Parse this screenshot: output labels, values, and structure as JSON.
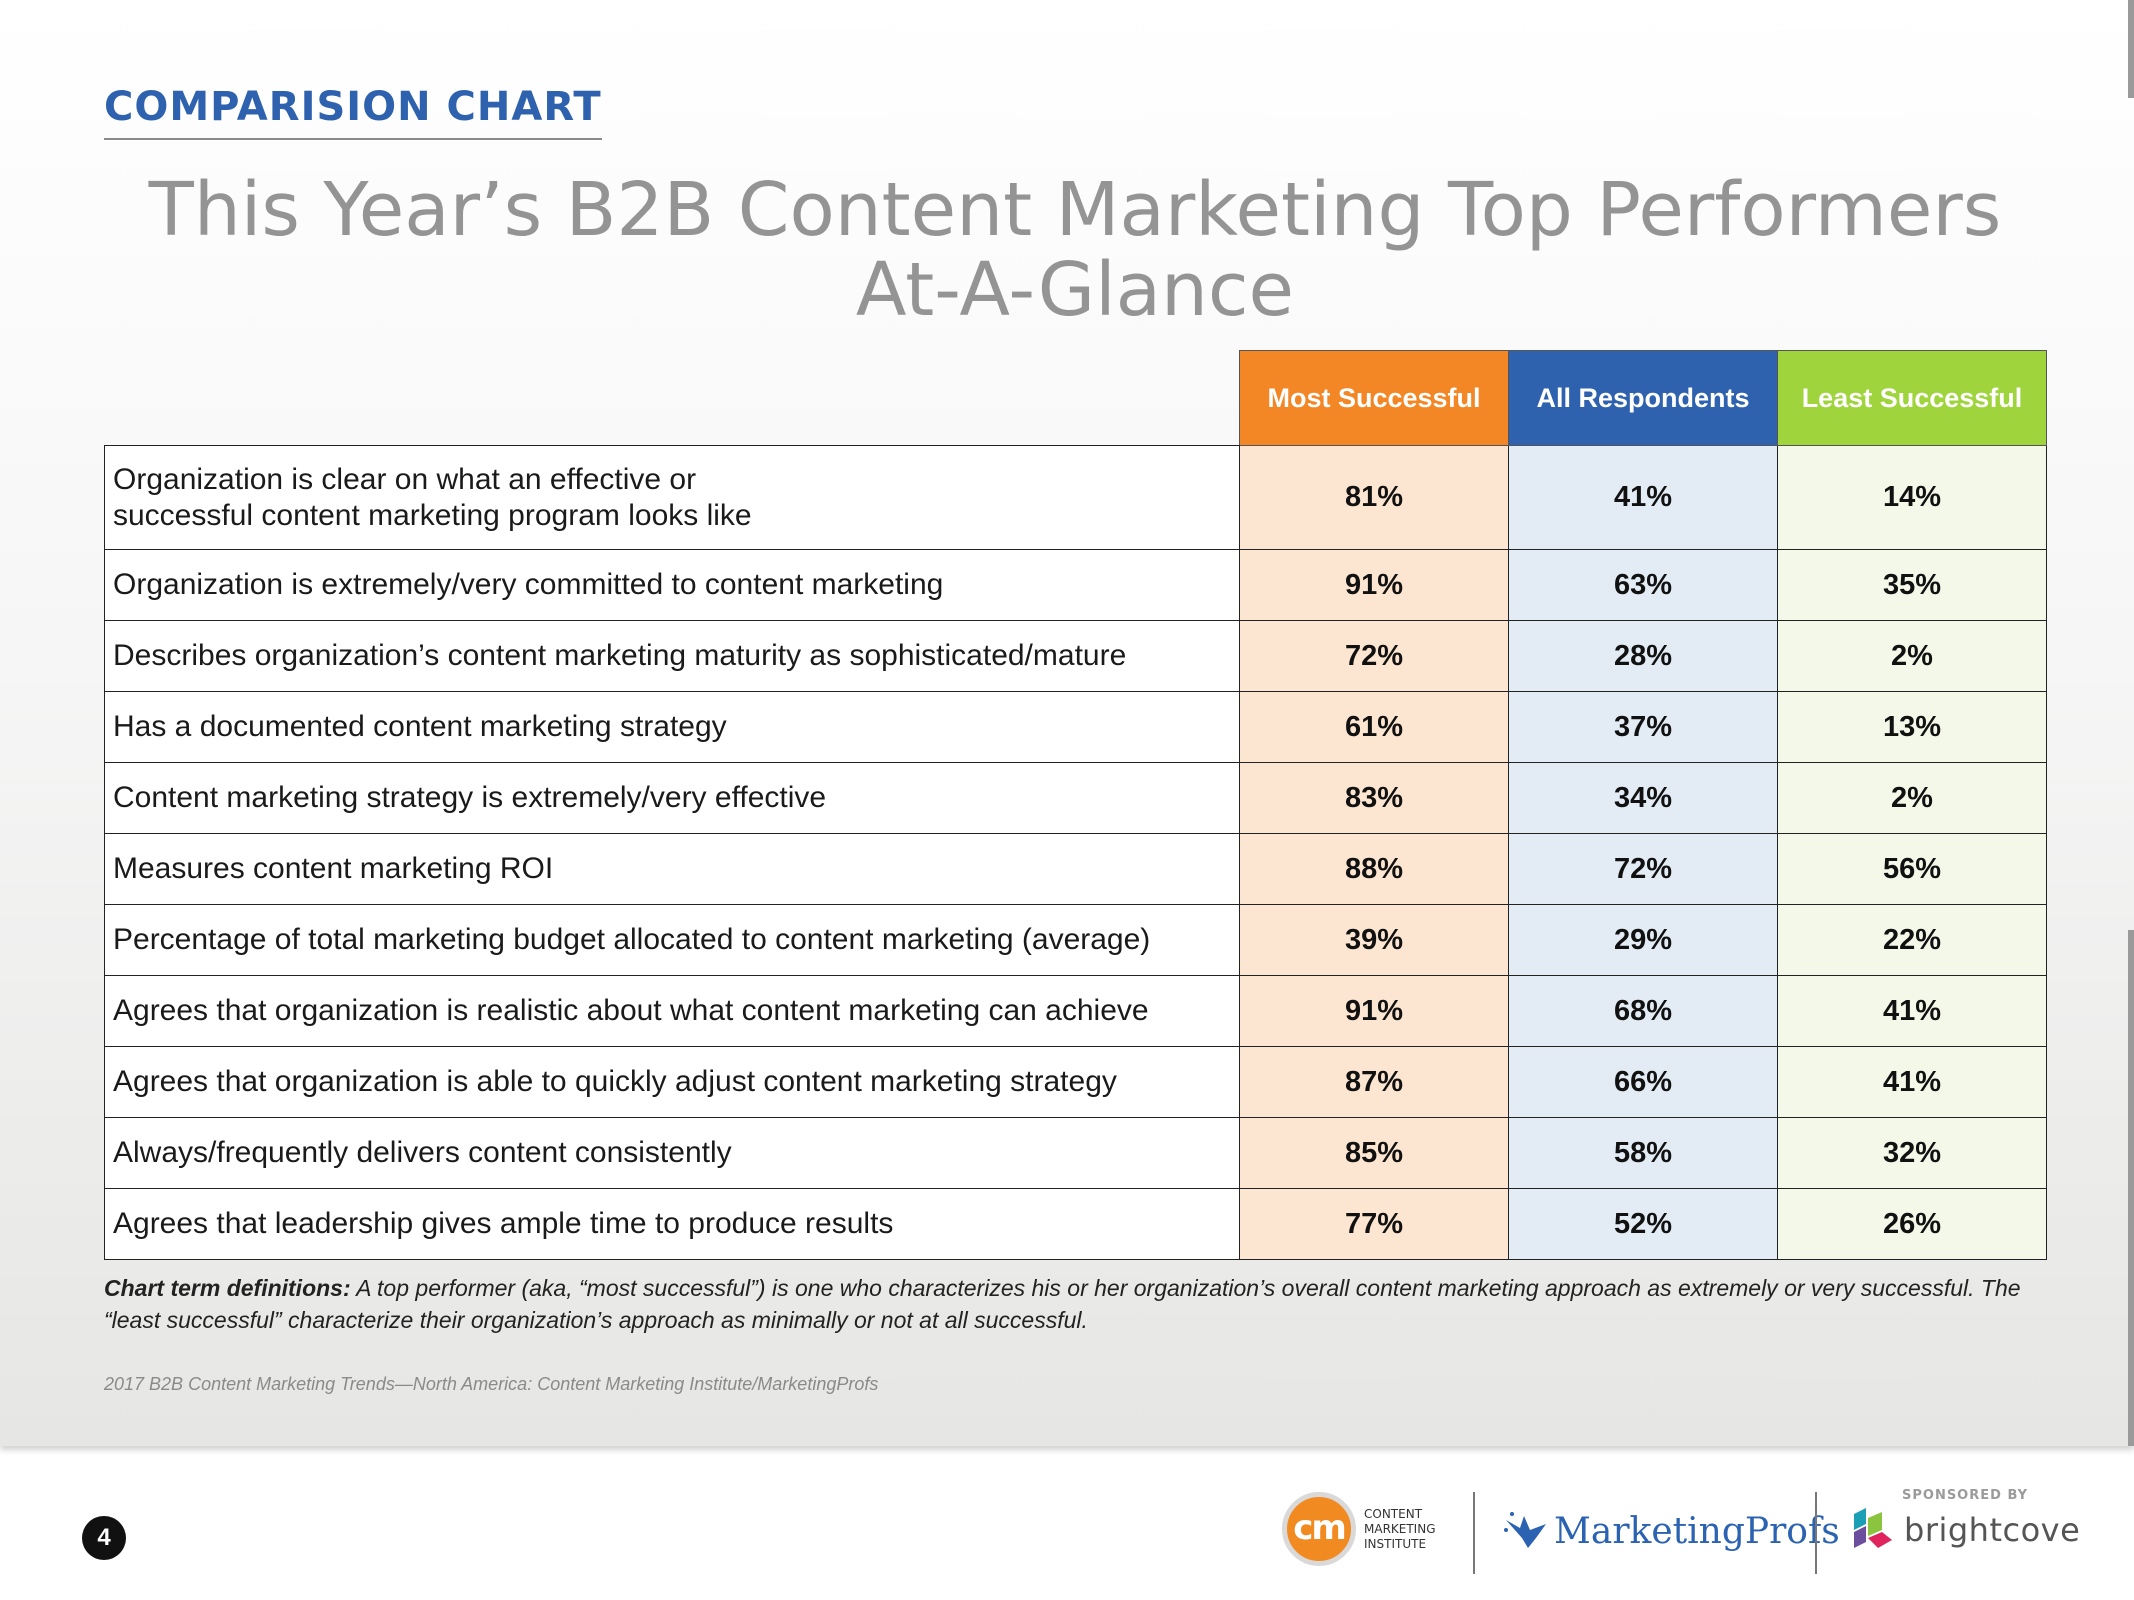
{
  "page": {
    "section_label": "COMPARISION CHART",
    "title_line1": "This Year’s B2B Content Marketing Top Performers",
    "title_line2": "At-A-Glance",
    "definitions_label": "Chart term definitions:",
    "definitions_text": " A top performer (aka, “most successful”) is one who characterizes his or her organization’s overall content marketing approach as extremely or very successful. The “least successful” characterize their organization’s approach as minimally or not at all successful.",
    "source": "2017 B2B Content Marketing Trends—North America: Content Marketing Institute/MarketingProfs",
    "page_number": "4"
  },
  "logos": {
    "cmi_mark": "cm",
    "cmi_line1": "CONTENT",
    "cmi_line2": "MARKETING",
    "cmi_line3": "INSTITUTE",
    "marketingprofs": "MarketingProfs",
    "sponsored_by": "SPONSORED BY",
    "brightcove": "brightcove"
  },
  "colors": {
    "most_header": "#f38725",
    "all_header": "#2f62ae",
    "least_header": "#9fd43c",
    "most_cell": "#fde6d1",
    "all_cell": "#e3ecf5",
    "least_cell": "#f4f8e8",
    "title_gray": "#949494",
    "section_blue": "#2f62ae"
  },
  "chart_data": {
    "type": "table",
    "columns": [
      "Most Successful",
      "All Respondents",
      "Least Successful"
    ],
    "rows": [
      {
        "label": "Organization is clear on what an effective or successful content marketing program looks like",
        "values": [
          "81%",
          "41%",
          "14%"
        ]
      },
      {
        "label": "Organization is extremely/very committed to content marketing",
        "values": [
          "91%",
          "63%",
          "35%"
        ]
      },
      {
        "label": "Describes organization’s content marketing maturity as sophisticated/mature",
        "values": [
          "72%",
          "28%",
          "2%"
        ]
      },
      {
        "label": "Has a documented content marketing strategy",
        "values": [
          "61%",
          "37%",
          "13%"
        ]
      },
      {
        "label": "Content marketing strategy is extremely/very effective",
        "values": [
          "83%",
          "34%",
          "2%"
        ]
      },
      {
        "label": "Measures content marketing ROI",
        "values": [
          "88%",
          "72%",
          "56%"
        ]
      },
      {
        "label": "Percentage of total marketing budget allocated to content marketing (average)",
        "values": [
          "39%",
          "29%",
          "22%"
        ]
      },
      {
        "label": "Agrees that organization is realistic about what content marketing can achieve",
        "values": [
          "91%",
          "68%",
          "41%"
        ]
      },
      {
        "label": "Agrees that organization is able to quickly adjust content marketing strategy",
        "values": [
          "87%",
          "66%",
          "41%"
        ]
      },
      {
        "label": "Always/frequently delivers content consistently",
        "values": [
          "85%",
          "58%",
          "32%"
        ]
      },
      {
        "label": "Agrees that leadership gives ample time to produce results",
        "values": [
          "77%",
          "52%",
          "26%"
        ]
      }
    ]
  }
}
